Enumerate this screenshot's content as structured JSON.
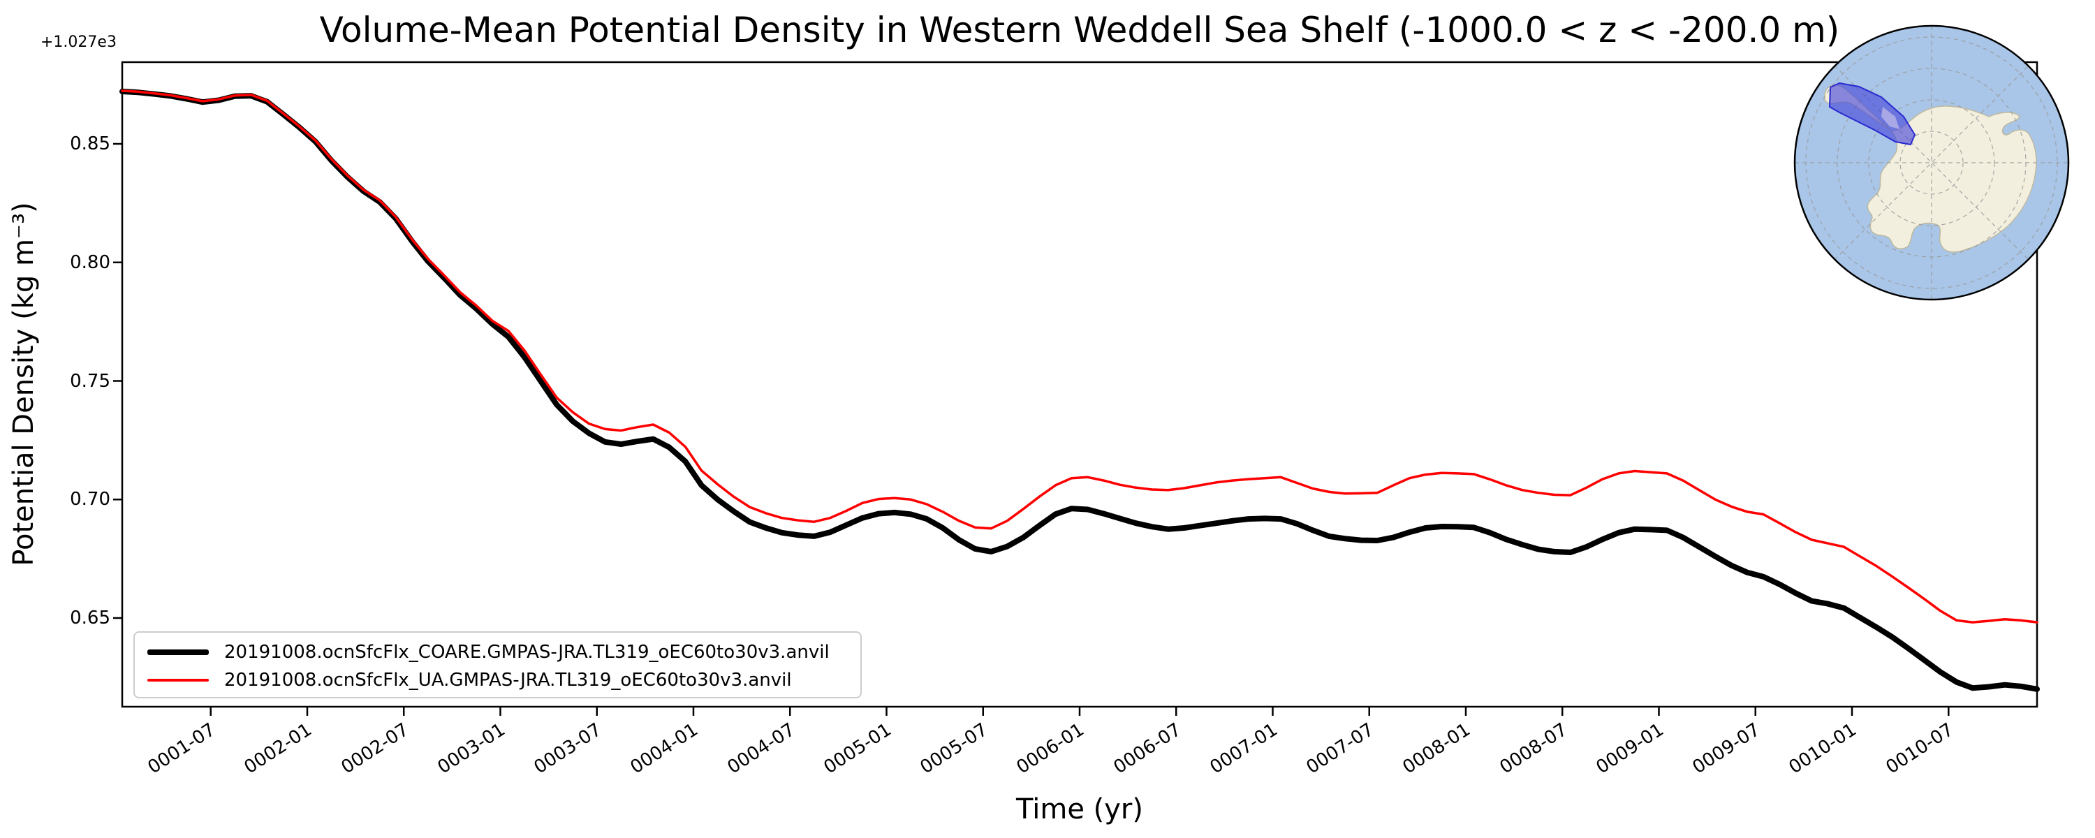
{
  "chart_data": {
    "type": "line",
    "title": "Volume-Mean Potential Density in Western Weddell Sea Shelf (-1000.0 < z < -200.0 m)",
    "xlabel": "Time (yr)",
    "ylabel": "Potential Density (kg m⁻³)",
    "y_offset_text": "+1.027e3",
    "x_tick_labels": [
      "0001-07",
      "0002-01",
      "0002-07",
      "0003-01",
      "0003-07",
      "0004-01",
      "0004-07",
      "0005-01",
      "0005-07",
      "0006-01",
      "0006-07",
      "0007-01",
      "0007-07",
      "0008-01",
      "0008-07",
      "0009-01",
      "0009-07",
      "0010-01",
      "0010-07"
    ],
    "y_tick_labels": [
      "0.85",
      "0.80",
      "0.75",
      "0.70",
      "0.65"
    ],
    "y_tick_values": [
      0.85,
      0.8,
      0.75,
      0.7,
      0.65
    ],
    "ylim": [
      0.6126,
      0.8845
    ],
    "x_start_month": "0001-01",
    "x_end_month": "0010-12",
    "points_per_year": 12,
    "grid": false,
    "legend_position": "lower-left",
    "axis_color": "#000000",
    "legend_border_color": "#cccccc",
    "series": [
      {
        "name": "20191008.ocnSfcFlx_COARE.GMPAS-JRA.TL319_oEC60to30v3.anvil",
        "color": "#000000",
        "linewidth": 8,
        "values": [
          0.8721,
          0.8717,
          0.871,
          0.8702,
          0.869,
          0.8676,
          0.8684,
          0.8701,
          0.8703,
          0.8678,
          0.8625,
          0.857,
          0.851,
          0.843,
          0.836,
          0.83,
          0.8255,
          0.8185,
          0.809,
          0.8005,
          0.7935,
          0.7862,
          0.7805,
          0.774,
          0.7686,
          0.76,
          0.75,
          0.74,
          0.733,
          0.728,
          0.7243,
          0.7233,
          0.7245,
          0.7255,
          0.722,
          0.716,
          0.706,
          0.7,
          0.695,
          0.6905,
          0.688,
          0.686,
          0.685,
          0.6845,
          0.6862,
          0.6892,
          0.6922,
          0.694,
          0.6945,
          0.6938,
          0.6918,
          0.688,
          0.683,
          0.6792,
          0.678,
          0.6802,
          0.684,
          0.689,
          0.6938,
          0.6962,
          0.6958,
          0.694,
          0.692,
          0.69,
          0.6885,
          0.6875,
          0.688,
          0.689,
          0.69,
          0.691,
          0.6918,
          0.692,
          0.6918,
          0.6898,
          0.687,
          0.6845,
          0.6835,
          0.6828,
          0.6827,
          0.684,
          0.6862,
          0.688,
          0.6886,
          0.6885,
          0.6882,
          0.686,
          0.6832,
          0.681,
          0.679,
          0.678,
          0.6777,
          0.68,
          0.6832,
          0.686,
          0.6875,
          0.6873,
          0.687,
          0.684,
          0.68,
          0.676,
          0.6722,
          0.6692,
          0.6674,
          0.6642,
          0.6605,
          0.6572,
          0.656,
          0.6542,
          0.6502,
          0.6462,
          0.642,
          0.6372,
          0.6322,
          0.6272,
          0.623,
          0.6205,
          0.621,
          0.6218,
          0.6212,
          0.62
        ]
      },
      {
        "name": "20191008.ocnSfcFlx_UA.GMPAS-JRA.TL319_oEC60to30v3.anvil",
        "color": "#ff0000",
        "linewidth": 3.5,
        "values": [
          0.8724,
          0.872,
          0.8713,
          0.8705,
          0.8693,
          0.868,
          0.8688,
          0.8704,
          0.8707,
          0.8682,
          0.8629,
          0.8574,
          0.8515,
          0.8436,
          0.8366,
          0.8306,
          0.8262,
          0.8192,
          0.8098,
          0.8015,
          0.7946,
          0.7874,
          0.7818,
          0.7754,
          0.7711,
          0.7628,
          0.7528,
          0.743,
          0.7368,
          0.732,
          0.7297,
          0.7291,
          0.7305,
          0.7316,
          0.7282,
          0.7222,
          0.7122,
          0.7064,
          0.7012,
          0.6968,
          0.6942,
          0.6922,
          0.6912,
          0.6906,
          0.6922,
          0.6952,
          0.6985,
          0.7002,
          0.7006,
          0.7,
          0.698,
          0.6948,
          0.691,
          0.6882,
          0.6878,
          0.691,
          0.696,
          0.7012,
          0.706,
          0.709,
          0.7094,
          0.708,
          0.7062,
          0.705,
          0.7042,
          0.704,
          0.7048,
          0.706,
          0.7072,
          0.708,
          0.7086,
          0.709,
          0.7094,
          0.707,
          0.7046,
          0.7032,
          0.7025,
          0.7026,
          0.7028,
          0.706,
          0.709,
          0.7105,
          0.7112,
          0.711,
          0.7107,
          0.7085,
          0.706,
          0.704,
          0.7028,
          0.702,
          0.7018,
          0.705,
          0.7086,
          0.711,
          0.712,
          0.7115,
          0.711,
          0.708,
          0.704,
          0.7,
          0.697,
          0.6948,
          0.6937,
          0.69,
          0.6862,
          0.683,
          0.6815,
          0.68,
          0.676,
          0.672,
          0.6675,
          0.6628,
          0.658,
          0.653,
          0.649,
          0.6482,
          0.6488,
          0.6495,
          0.649,
          0.6482
        ]
      }
    ],
    "inset_map": {
      "description": "south-polar-stereographic-antarctica-locator",
      "ocean_color": "#a9c6e8",
      "land_color": "#f2efdf",
      "coast_color": "#bdb99f",
      "graticule_color": "#999999",
      "outline_color": "#000000",
      "highlight_region_color": "#4646d8",
      "highlight_region_edge": "#2a2ad0"
    }
  }
}
